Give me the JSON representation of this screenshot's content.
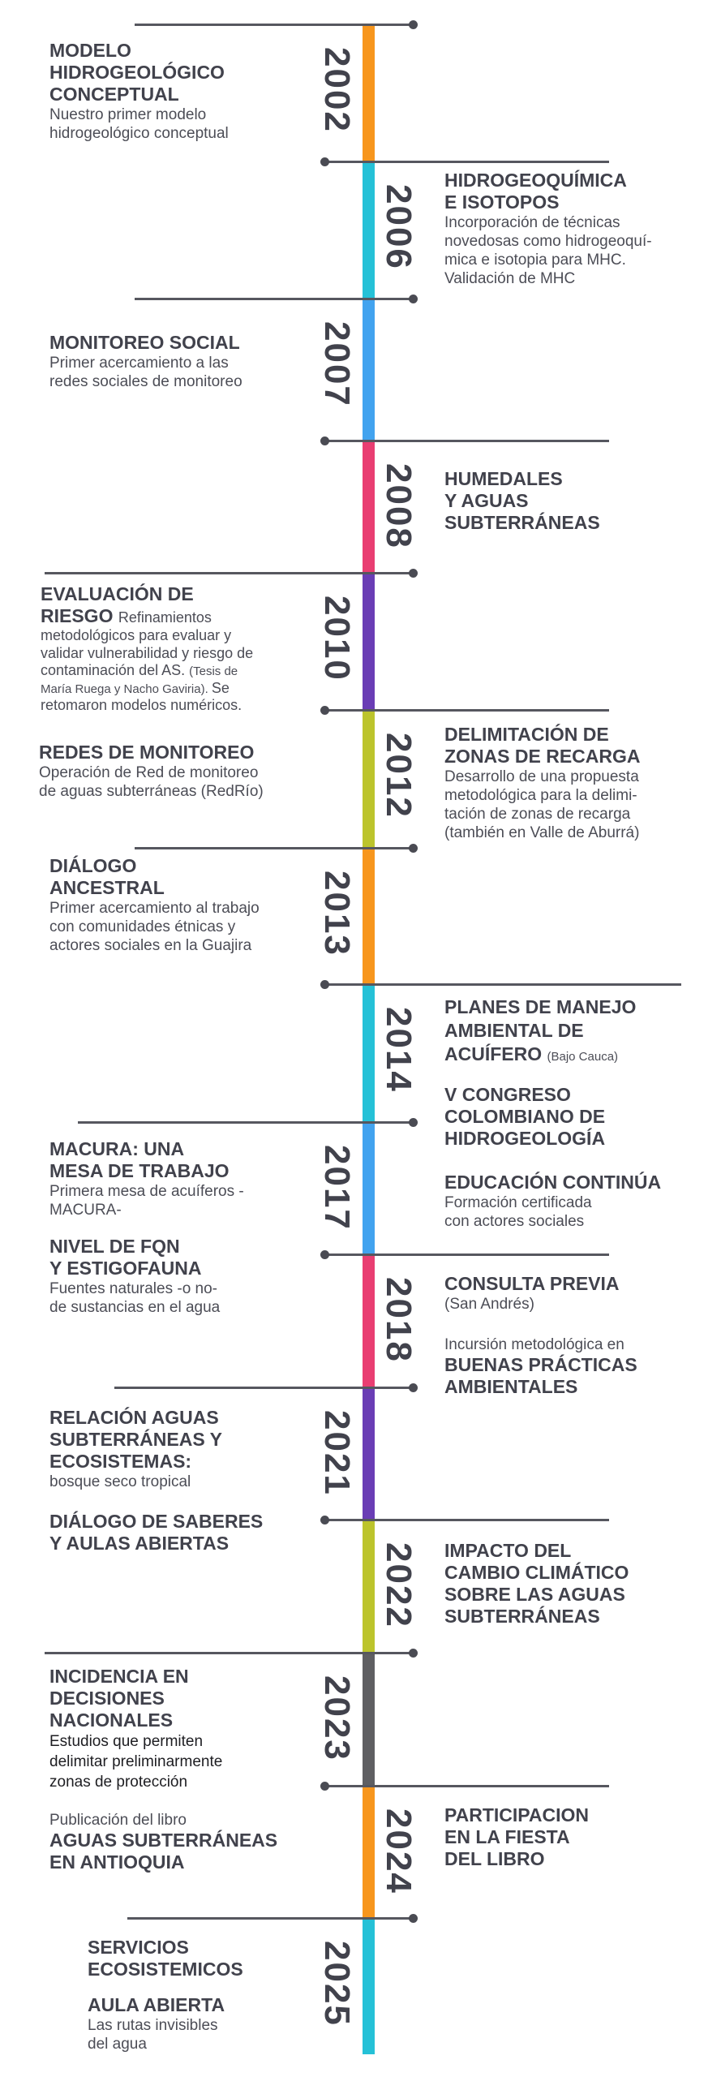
{
  "timeline": {
    "line_color": "#56575f",
    "text_color": "#41424c",
    "segments": [
      {
        "year": "2002",
        "color": "#f7961d"
      },
      {
        "year": "2006",
        "color": "#25c1d7"
      },
      {
        "year": "2007",
        "color": "#42a3ef"
      },
      {
        "year": "2008",
        "color": "#e93e72"
      },
      {
        "year": "2010",
        "color": "#6a3db5"
      },
      {
        "year": "2012",
        "color": "#bcc42c"
      },
      {
        "year": "2013",
        "color": "#f7961d"
      },
      {
        "year": "2014",
        "color": "#25c1d7"
      },
      {
        "year": "2017",
        "color": "#42a3ef"
      },
      {
        "year": "2018",
        "color": "#e93e72"
      },
      {
        "year": "2021",
        "color": "#6a3db5"
      },
      {
        "year": "2022",
        "color": "#bcc42c"
      },
      {
        "year": "2023",
        "color": "#5f5f62"
      },
      {
        "year": "2024",
        "color": "#f7961d"
      },
      {
        "year": "2025",
        "color": "#25c1d7"
      }
    ]
  },
  "blocks": [
    {
      "lines": [
        [
          {
            "s": "title",
            "text": "MODELO"
          }
        ],
        [
          {
            "s": "title",
            "text": "HIDROGEOLÓGICO"
          }
        ],
        [
          {
            "s": "title",
            "text": "CONCEPTUAL"
          }
        ],
        [
          {
            "s": "desc",
            "text": "Nuestro primer modelo"
          }
        ],
        [
          {
            "s": "desc",
            "text": "hidrogeológico conceptual"
          }
        ]
      ]
    },
    {
      "lines": [
        [
          {
            "s": "title",
            "text": "HIDROGEOQUÍMICA"
          }
        ],
        [
          {
            "s": "title",
            "text": "E ISOTOPOS"
          }
        ],
        [
          {
            "s": "desc",
            "text": "Incorporación de técnicas"
          }
        ],
        [
          {
            "s": "desc",
            "text": "novedosas como hidrogeoquí-"
          }
        ],
        [
          {
            "s": "desc",
            "text": "mica e isotopia para MHC."
          }
        ],
        [
          {
            "s": "desc",
            "text": "Validación de MHC"
          }
        ]
      ]
    },
    {
      "lines": [
        [
          {
            "s": "title",
            "text": "MONITOREO SOCIAL"
          }
        ],
        [
          {
            "s": "desc",
            "text": "Primer acercamiento a las"
          }
        ],
        [
          {
            "s": "desc",
            "text": "redes sociales de monitoreo"
          }
        ]
      ]
    },
    {
      "lines": [
        [
          {
            "s": "title",
            "text": "HUMEDALES"
          }
        ],
        [
          {
            "s": "title",
            "text": "Y AGUAS"
          }
        ],
        [
          {
            "s": "title",
            "text": "SUBTERRÁNEAS"
          }
        ]
      ]
    },
    {
      "lines": [
        [
          {
            "s": "title",
            "text": "EVALUACIÓN DE"
          }
        ],
        [
          {
            "s": "title",
            "text": "RIESGO "
          },
          {
            "s": "desc2",
            "text": "Refinamientos"
          }
        ],
        [
          {
            "s": "desc2",
            "text": "metodológicos para evaluar y"
          }
        ],
        [
          {
            "s": "desc2",
            "text": "validar vulnerabilidad y riesgo de"
          }
        ],
        [
          {
            "s": "desc2",
            "text": "contaminación del AS. "
          },
          {
            "s": "small",
            "text": "(Tesis de"
          }
        ],
        [
          {
            "s": "small",
            "text": "María Ruega y Nacho Gaviria). "
          },
          {
            "s": "desc2",
            "text": "Se"
          }
        ],
        [
          {
            "s": "desc2",
            "text": "retomaron modelos numéricos."
          }
        ]
      ]
    },
    {
      "lines": [
        [
          {
            "s": "title",
            "text": "REDES DE MONITOREO"
          }
        ],
        [
          {
            "s": "desc",
            "text": "Operación de Red de monitoreo"
          }
        ],
        [
          {
            "s": "desc",
            "text": "de aguas subterráneas (RedRío)"
          }
        ]
      ]
    },
    {
      "lines": [
        [
          {
            "s": "title",
            "text": "DELIMITACIÓN DE"
          }
        ],
        [
          {
            "s": "title",
            "text": "ZONAS DE RECARGA"
          }
        ],
        [
          {
            "s": "desc",
            "text": "Desarrollo de una propuesta"
          }
        ],
        [
          {
            "s": "desc",
            "text": "metodológica para la delimi-"
          }
        ],
        [
          {
            "s": "desc",
            "text": "tación de zonas de recarga"
          }
        ],
        [
          {
            "s": "desc",
            "text": "(también en Valle de Aburrá)"
          }
        ]
      ]
    },
    {
      "lines": [
        [
          {
            "s": "title",
            "text": "DIÁLOGO"
          }
        ],
        [
          {
            "s": "title",
            "text": "ANCESTRAL"
          }
        ],
        [
          {
            "s": "desc",
            "text": "Primer acercamiento al trabajo"
          }
        ],
        [
          {
            "s": "desc",
            "text": "con comunidades étnicas y"
          }
        ],
        [
          {
            "s": "desc",
            "text": "actores sociales en la Guajira"
          }
        ]
      ]
    },
    {
      "lines": [
        [
          {
            "s": "title",
            "text": "PLANES DE MANEJO"
          }
        ],
        [
          {
            "s": "title",
            "text": "AMBIENTAL DE"
          }
        ],
        [
          {
            "s": "title",
            "text": "ACUÍFERO "
          },
          {
            "s": "small",
            "text": "(Bajo Cauca)"
          }
        ]
      ]
    },
    {
      "lines": [
        [
          {
            "s": "title",
            "text": "V CONGRESO"
          }
        ],
        [
          {
            "s": "title",
            "text": "COLOMBIANO DE"
          }
        ],
        [
          {
            "s": "title",
            "text": "HIDROGEOLOGÍA"
          }
        ]
      ]
    },
    {
      "lines": [
        [
          {
            "s": "title",
            "text": "EDUCACIÓN CONTINÚA"
          }
        ],
        [
          {
            "s": "desc",
            "text": "Formación certificada"
          }
        ],
        [
          {
            "s": "desc",
            "text": "con actores sociales"
          }
        ]
      ]
    },
    {
      "lines": [
        [
          {
            "s": "title",
            "text": "MACURA: UNA"
          }
        ],
        [
          {
            "s": "title",
            "text": "MESA DE TRABAJO"
          }
        ],
        [
          {
            "s": "desc",
            "text": "Primera mesa de acuíferos -"
          }
        ],
        [
          {
            "s": "desc",
            "text": "MACURA-"
          }
        ]
      ]
    },
    {
      "lines": [
        [
          {
            "s": "title",
            "text": "NIVEL DE FQN"
          }
        ],
        [
          {
            "s": "title",
            "text": "Y ESTIGOFAUNA"
          }
        ],
        [
          {
            "s": "desc",
            "text": "Fuentes naturales -o no-"
          }
        ],
        [
          {
            "s": "desc",
            "text": "de sustancias en el agua"
          }
        ]
      ]
    },
    {
      "lines": [
        [
          {
            "s": "title",
            "text": "CONSULTA PREVIA"
          }
        ],
        [
          {
            "s": "desc",
            "text": "(San Andrés)"
          }
        ]
      ]
    },
    {
      "lines": [
        [
          {
            "s": "desc",
            "text": "Incursión metodológica en"
          }
        ],
        [
          {
            "s": "title",
            "text": "BUENAS PRÁCTICAS"
          }
        ],
        [
          {
            "s": "title",
            "text": "AMBIENTALES"
          }
        ]
      ]
    },
    {
      "lines": [
        [
          {
            "s": "title",
            "text": "RELACIÓN AGUAS"
          }
        ],
        [
          {
            "s": "title",
            "text": "SUBTERRÁNEAS Y"
          }
        ],
        [
          {
            "s": "title",
            "text": "ECOSISTEMAS:"
          }
        ],
        [
          {
            "s": "desc",
            "text": "bosque seco tropical"
          }
        ]
      ]
    },
    {
      "lines": [
        [
          {
            "s": "title",
            "text": "DIÁLOGO DE SABERES"
          }
        ],
        [
          {
            "s": "title",
            "text": "Y AULAS ABIERTAS"
          }
        ]
      ]
    },
    {
      "lines": [
        [
          {
            "s": "title",
            "text": "IMPACTO DEL"
          }
        ],
        [
          {
            "s": "title",
            "text": "CAMBIO CLIMÁTICO"
          }
        ],
        [
          {
            "s": "title",
            "text": "SOBRE LAS AGUAS"
          }
        ],
        [
          {
            "s": "title",
            "text": "SUBTERRÁNEAS"
          }
        ]
      ]
    },
    {
      "lines": [
        [
          {
            "s": "title",
            "text": "INCIDENCIA EN"
          }
        ],
        [
          {
            "s": "title",
            "text": "DECISIONES"
          }
        ],
        [
          {
            "s": "title",
            "text": "NACIONALES"
          }
        ],
        [
          {
            "s": "dark",
            "text": "Estudios que permiten"
          }
        ],
        [
          {
            "s": "dark",
            "text": "delimitar preliminarmente"
          }
        ],
        [
          {
            "s": "dark",
            "text": "zonas de protección"
          }
        ]
      ]
    },
    {
      "lines": [
        [
          {
            "s": "desc",
            "text": "Publicación del libro"
          }
        ],
        [
          {
            "s": "title",
            "text": "AGUAS SUBTERRÁNEAS"
          }
        ],
        [
          {
            "s": "title",
            "text": "EN ANTIOQUIA"
          }
        ]
      ]
    },
    {
      "lines": [
        [
          {
            "s": "title",
            "text": "PARTICIPACION"
          }
        ],
        [
          {
            "s": "title",
            "text": "EN LA FIESTA"
          }
        ],
        [
          {
            "s": "title",
            "text": "DEL LIBRO"
          }
        ]
      ]
    },
    {
      "lines": [
        [
          {
            "s": "title",
            "text": "SERVICIOS"
          }
        ],
        [
          {
            "s": "title",
            "text": "ECOSISTEMICOS"
          }
        ]
      ]
    },
    {
      "lines": [
        [
          {
            "s": "title",
            "text": "AULA ABIERTA"
          }
        ],
        [
          {
            "s": "desc",
            "text": "Las rutas invisibles"
          }
        ],
        [
          {
            "s": "desc",
            "text": "del agua"
          }
        ]
      ]
    }
  ]
}
